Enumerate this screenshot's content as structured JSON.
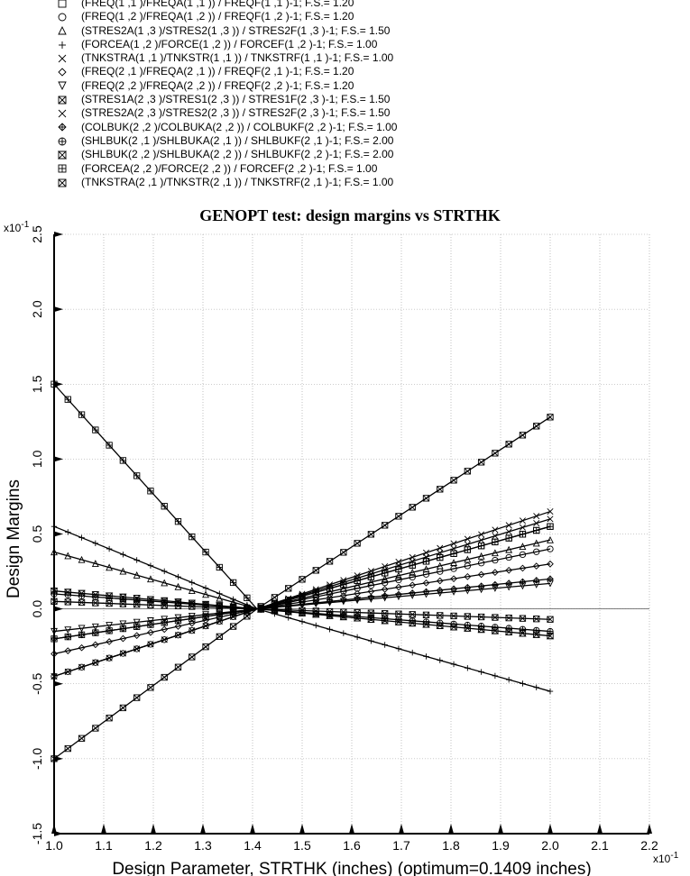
{
  "chart_data": {
    "type": "line",
    "title": "GENOPT test: design margins vs STRTHK",
    "xlabel": "Design Parameter, STRTHK (inches) (optimum=0.1409 inches)",
    "ylabel": "Design Margins",
    "x_exponent": "x10-1",
    "y_exponent": "x10-1",
    "xlim": [
      1.0,
      2.2
    ],
    "ylim": [
      -1.5,
      2.5
    ],
    "x_ticks": [
      "1.0",
      "1.1",
      "1.2",
      "1.3",
      "1.4",
      "1.5",
      "1.6",
      "1.7",
      "1.8",
      "1.9",
      "2.0",
      "2.1",
      "2.2"
    ],
    "y_ticks": [
      "-1.5",
      "-1.0",
      "-0.5",
      "0.0",
      "0.5",
      "1.0",
      "1.5",
      "2.0",
      "2.5"
    ],
    "grid": true,
    "legend_placement": "top",
    "series": [
      {
        "name": "(FREQ(1 ,1 )/FREQA(1 ,1 )) / FREQF(1 ,1 )-1; F.S.= 1.20",
        "marker": "square",
        "y0": -0.2,
        "y1": 0.55
      },
      {
        "name": "(FREQ(1 ,2 )/FREQA(1 ,2 )) / FREQF(1 ,2 )-1; F.S.= 1.20",
        "marker": "circle",
        "y0": -0.45,
        "y1": 0.4
      },
      {
        "name": "(STRES2A(1 ,3 )/STRES2(1 ,3 )) / STRES2F(1 ,3 )-1; F.S.= 1.50",
        "marker": "triangle-up",
        "y0": 0.38,
        "y1": 0.46
      },
      {
        "name": "(FORCEA(1 ,2 )/FORCE(1 ,2 )) / FORCEF(1 ,2 )-1; F.S.= 1.00",
        "marker": "plus",
        "y0": 0.55,
        "y1": -0.55
      },
      {
        "name": "(TNKSTRA(1 ,1 )/TNKSTR(1 ,1 )) / TNKSTRF(1 ,1 )-1; F.S.= 1.00",
        "marker": "x",
        "y0": -0.45,
        "y1": 0.6
      },
      {
        "name": "(FREQ(2 ,1 )/FREQA(2 ,1 )) / FREQF(2 ,1 )-1; F.S.= 1.20",
        "marker": "diamond",
        "y0": -0.3,
        "y1": 0.3
      },
      {
        "name": "(FREQ(2 ,2 )/FREQA(2 ,2 )) / FREQF(2 ,2 )-1; F.S.= 1.20",
        "marker": "triangle-down",
        "y0": -0.15,
        "y1": 0.17
      },
      {
        "name": "(STRES1A(2 ,3 )/STRES1(2 ,3 )) / STRES1F(2 ,3 )-1; F.S.= 1.50",
        "marker": "square-x",
        "y0": -1.0,
        "y1": 1.28
      },
      {
        "name": "(STRES2A(2 ,3 )/STRES2(2 ,3 )) / STRES2F(2 ,3 )-1; F.S.= 1.50",
        "marker": "x",
        "y0": -0.45,
        "y1": 0.65
      },
      {
        "name": "(COLBUK(2 ,2 )/COLBUKA(2 ,2 )) / COLBUKF(2 ,2 )-1; F.S.= 1.00",
        "marker": "diamond-plus",
        "y0": -0.2,
        "y1": 0.2
      },
      {
        "name": "(SHLBUK(2 ,1 )/SHLBUKA(2 ,1 )) / SHLBUKF(2 ,1 )-1; F.S.= 2.00",
        "marker": "circle-plus",
        "y0": 0.1,
        "y1": -0.15
      },
      {
        "name": "(SHLBUK(2 ,2 )/SHLBUKA(2 ,2 )) / SHLBUKF(2 ,2 )-1; F.S.= 2.00",
        "marker": "hourglass",
        "y0": 0.12,
        "y1": -0.18
      },
      {
        "name": "(FORCEA(2 ,2 )/FORCE(2 ,2 )) / FORCEF(2 ,2 )-1; F.S.= 1.00",
        "marker": "square-plus",
        "y0": 1.5,
        "y1": 0.55
      },
      {
        "name": "(TNKSTRA(2 ,1 )/TNKSTR(2 ,1 )) / TNKSTRF(2 ,1 )-1; F.S.= 1.00",
        "marker": "square-x",
        "y0": 0.05,
        "y1": -0.07
      }
    ],
    "x_start": 1.0,
    "x_end": 2.0,
    "crossing_x": 1.409,
    "crossing_y": 0.0
  }
}
